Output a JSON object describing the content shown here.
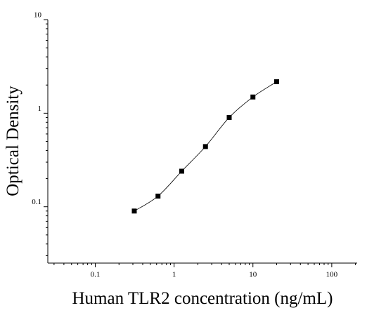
{
  "chart_data": {
    "type": "scatter",
    "x_label": "Human TLR2 concentration (ng/mL)",
    "y_label": "Optical Density",
    "x": [
      0.3125,
      0.625,
      1.25,
      2.5,
      5,
      10,
      20
    ],
    "values": [
      0.09,
      0.13,
      0.24,
      0.44,
      0.9,
      1.49,
      2.17
    ],
    "color": "#000000",
    "fit_line": true,
    "xlog": true,
    "ylog": true,
    "xlim": [
      0.025,
      210
    ],
    "ylim": [
      0.025,
      10
    ],
    "xticks": [
      0.1,
      1,
      10,
      100
    ],
    "yticks": [
      0.1,
      1,
      10
    ],
    "minor_ticks": true
  }
}
